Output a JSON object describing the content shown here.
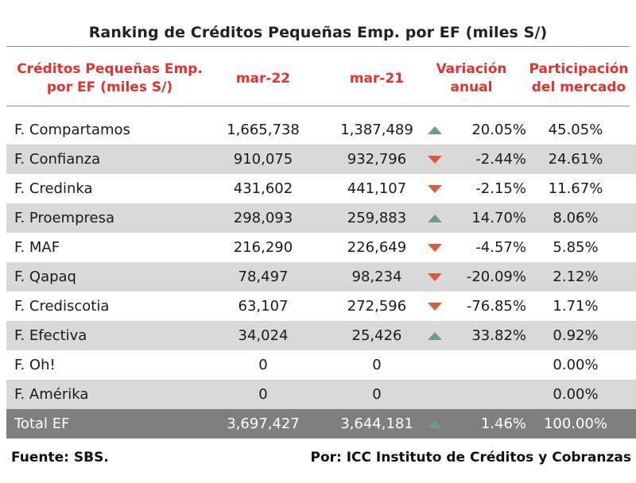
{
  "title": "Ranking de Créditos Pequeñas Emp. por EF (miles S/)",
  "headers": {
    "name": "Créditos Pequeñas Emp. por EF (miles S/)",
    "m22": "mar-22",
    "m21": "mar-21",
    "var": "Variación anual",
    "par": "Participación del mercado"
  },
  "rows": [
    {
      "name": "F. Compartamos",
      "m22": "1,665,738",
      "m21": "1,387,489",
      "trend": "up",
      "var": "20.05%",
      "par": "45.05%"
    },
    {
      "name": "F. Confianza",
      "m22": "910,075",
      "m21": "932,796",
      "trend": "down",
      "var": "-2.44%",
      "par": "24.61%"
    },
    {
      "name": "F. Credinka",
      "m22": "431,602",
      "m21": "441,107",
      "trend": "down",
      "var": "-2.15%",
      "par": "11.67%"
    },
    {
      "name": "F. Proempresa",
      "m22": "298,093",
      "m21": "259,883",
      "trend": "up",
      "var": "14.70%",
      "par": "8.06%"
    },
    {
      "name": "F. MAF",
      "m22": "216,290",
      "m21": "226,649",
      "trend": "down",
      "var": "-4.57%",
      "par": "5.85%"
    },
    {
      "name": "F. Qapaq",
      "m22": "78,497",
      "m21": "98,234",
      "trend": "down",
      "var": "-20.09%",
      "par": "2.12%"
    },
    {
      "name": "F. Crediscotia",
      "m22": "63,107",
      "m21": "272,596",
      "trend": "down",
      "var": "-76.85%",
      "par": "1.71%"
    },
    {
      "name": "F. Efectiva",
      "m22": "34,024",
      "m21": "25,426",
      "trend": "up",
      "var": "33.82%",
      "par": "0.92%"
    },
    {
      "name": "F. Oh!",
      "m22": "0",
      "m21": "0",
      "trend": "",
      "var": "",
      "par": "0.00%"
    },
    {
      "name": "F. Amérika",
      "m22": "0",
      "m21": "0",
      "trend": "",
      "var": "",
      "par": "0.00%"
    }
  ],
  "total": {
    "name": "Total EF",
    "m22": "3,697,427",
    "m21": "3,644,181",
    "trend": "up",
    "var": "1.46%",
    "par": "100.00%"
  },
  "footer": {
    "source": "Fuente: SBS.",
    "credit": "Por: ICC Instituto de Créditos y Cobranzas"
  },
  "colors": {
    "header_red": "#e3312d",
    "shade": "#d9d9d9",
    "total_bg": "#7f7f7f",
    "up": "#6a9f84",
    "down": "#e05a3a"
  }
}
